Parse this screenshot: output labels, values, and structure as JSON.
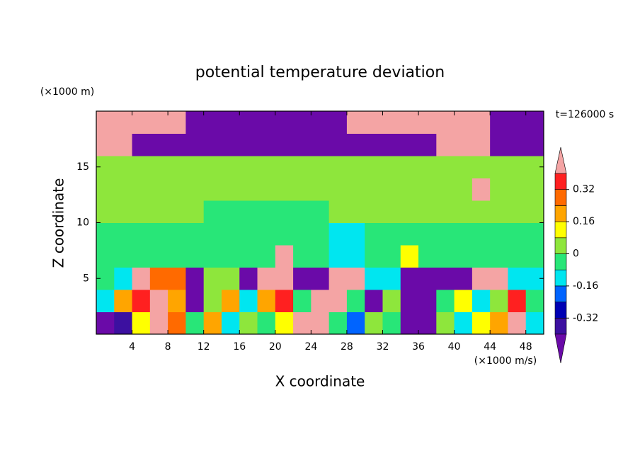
{
  "chart_data": {
    "type": "contour",
    "title": "potential temperature deviation",
    "y_unit": "(×1000 m)",
    "x_unit": "(×1000 m/s)",
    "xlabel": "X coordinate",
    "ylabel": "Z coordinate",
    "annotation": "t=126000 s",
    "xlim": [
      0,
      50
    ],
    "ylim": [
      0,
      20
    ],
    "xticks": [
      4,
      8,
      12,
      16,
      20,
      24,
      28,
      32,
      36,
      40,
      44,
      48
    ],
    "yticks": [
      5,
      10,
      15
    ],
    "x": [
      1,
      3,
      5,
      7,
      9,
      11,
      13,
      15,
      17,
      19,
      21,
      23,
      25,
      27,
      29,
      31,
      33,
      35,
      37,
      39,
      41,
      43,
      45,
      47,
      49
    ],
    "y": [
      1,
      3,
      5,
      7,
      9,
      11,
      13,
      15,
      17,
      19
    ],
    "z": [
      [
        -0.5,
        -0.36,
        0.12,
        0.5,
        0.28,
        -0.04,
        0.2,
        -0.12,
        0.04,
        -0.04,
        0.12,
        0.5,
        0.5,
        -0.04,
        -0.2,
        0.04,
        -0.04,
        -0.5,
        -0.5,
        0.04,
        -0.12,
        0.12,
        0.2,
        0.5,
        -0.12
      ],
      [
        -0.12,
        0.2,
        0.36,
        0.5,
        0.2,
        -0.5,
        0.04,
        0.2,
        -0.12,
        0.2,
        0.36,
        -0.04,
        0.5,
        0.5,
        -0.04,
        -0.5,
        0.04,
        -0.5,
        -0.5,
        -0.04,
        0.12,
        -0.12,
        0.04,
        0.36,
        -0.04
      ],
      [
        -0.04,
        -0.12,
        0.5,
        0.28,
        0.28,
        -0.5,
        0.04,
        0.04,
        -0.5,
        0.5,
        0.5,
        -0.5,
        -0.5,
        0.5,
        0.5,
        -0.12,
        -0.12,
        -0.5,
        -0.5,
        -0.5,
        -0.5,
        0.5,
        0.5,
        -0.12,
        -0.12
      ],
      [
        -0.04,
        -0.04,
        -0.04,
        -0.04,
        -0.04,
        -0.04,
        -0.04,
        -0.04,
        -0.04,
        -0.04,
        0.5,
        -0.04,
        -0.04,
        -0.12,
        -0.12,
        -0.04,
        -0.04,
        0.12,
        -0.04,
        -0.04,
        -0.04,
        -0.04,
        -0.04,
        -0.04,
        -0.04
      ],
      [
        -0.04,
        -0.04,
        -0.04,
        -0.04,
        -0.04,
        -0.04,
        -0.04,
        -0.04,
        -0.04,
        -0.04,
        -0.04,
        -0.04,
        -0.04,
        -0.12,
        -0.12,
        -0.04,
        -0.04,
        -0.04,
        -0.04,
        -0.04,
        -0.04,
        -0.04,
        -0.04,
        -0.04,
        -0.04
      ],
      [
        0.04,
        0.04,
        0.04,
        0.04,
        0.04,
        0.04,
        -0.04,
        -0.04,
        -0.04,
        -0.04,
        -0.04,
        -0.04,
        -0.04,
        0.04,
        0.04,
        0.04,
        0.04,
        0.04,
        0.04,
        0.04,
        0.04,
        0.04,
        0.04,
        0.04,
        0.04
      ],
      [
        0.04,
        0.04,
        0.04,
        0.04,
        0.04,
        0.04,
        0.04,
        0.04,
        0.04,
        0.04,
        0.04,
        0.04,
        0.04,
        0.04,
        0.04,
        0.04,
        0.04,
        0.04,
        0.04,
        0.04,
        0.04,
        0.5,
        0.04,
        0.04,
        0.04
      ],
      [
        0.04,
        0.04,
        0.04,
        0.04,
        0.04,
        0.04,
        0.04,
        0.04,
        0.04,
        0.04,
        0.04,
        0.04,
        0.04,
        0.04,
        0.04,
        0.04,
        0.04,
        0.04,
        0.04,
        0.04,
        0.04,
        0.04,
        0.04,
        0.04,
        0.04
      ],
      [
        0.5,
        0.5,
        -0.5,
        -0.5,
        -0.5,
        -0.5,
        -0.5,
        -0.5,
        -0.5,
        -0.5,
        -0.5,
        -0.5,
        -0.5,
        -0.5,
        -0.5,
        -0.5,
        -0.5,
        -0.5,
        -0.5,
        0.5,
        0.5,
        0.5,
        -0.5,
        -0.5,
        -0.5
      ],
      [
        0.5,
        0.5,
        0.5,
        0.5,
        0.5,
        -0.5,
        -0.5,
        -0.5,
        -0.5,
        -0.5,
        -0.5,
        -0.5,
        -0.5,
        -0.5,
        0.5,
        0.5,
        0.5,
        0.5,
        0.5,
        0.5,
        0.5,
        0.5,
        -0.5,
        -0.5,
        -0.5
      ]
    ],
    "levels": [
      -0.4,
      -0.32,
      -0.24,
      -0.16,
      -0.08,
      0,
      0.08,
      0.16,
      0.24,
      0.32,
      0.4
    ],
    "colors": [
      "#6a0aa8",
      "#3c10a0",
      "#0000b4",
      "#0064ff",
      "#00e6f0",
      "#28e678",
      "#8ee63c",
      "#ffff00",
      "#ffa500",
      "#ff6a00",
      "#ff2020",
      "#f4a4a4"
    ],
    "colorbar_ticks": [
      0.32,
      0.16,
      0,
      -0.16,
      -0.32
    ]
  }
}
